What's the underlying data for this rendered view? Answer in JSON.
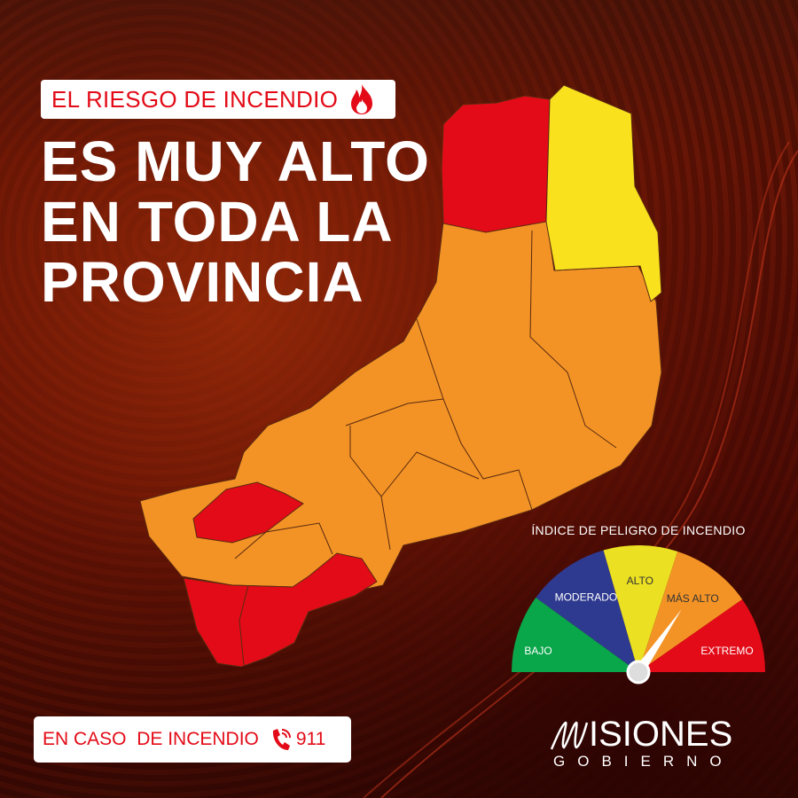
{
  "header": {
    "tag_label": "EL RIESGO DE INCENDIO",
    "tag_icon": "fire-icon",
    "headline_lines": [
      "ES MUY ALTO",
      "EN TODA LA",
      "PROVINCIA"
    ]
  },
  "map": {
    "regions": [
      {
        "level": "EXTREMO",
        "color": "#e30b17"
      },
      {
        "level": "ALTO",
        "color": "#f9e11e"
      },
      {
        "level": "MÁS ALTO",
        "color": "#f39325"
      },
      {
        "level": "EXTREMO",
        "color": "#e30b17"
      },
      {
        "level": "EXTREMO",
        "color": "#e30b17"
      }
    ]
  },
  "gauge": {
    "title": "ÍNDICE DE PELIGRO DE INCENDIO",
    "segments": [
      {
        "label": "BAJO",
        "color": "#0aa64a"
      },
      {
        "label": "MODERADO",
        "color": "#2e3a8f"
      },
      {
        "label": "ALTO",
        "color": "#ece022"
      },
      {
        "label": "MÁS ALTO",
        "color": "#f39325"
      },
      {
        "label": "EXTREMO",
        "color": "#e30b17"
      }
    ],
    "needle_level": "MÁS ALTO"
  },
  "footer": {
    "call_label": "EN CASO  DE INCENDIO",
    "phone_icon": "phone-icon",
    "phone_number": "911",
    "logo_main": "ISIONES",
    "logo_sub": "GOBIERNO"
  }
}
